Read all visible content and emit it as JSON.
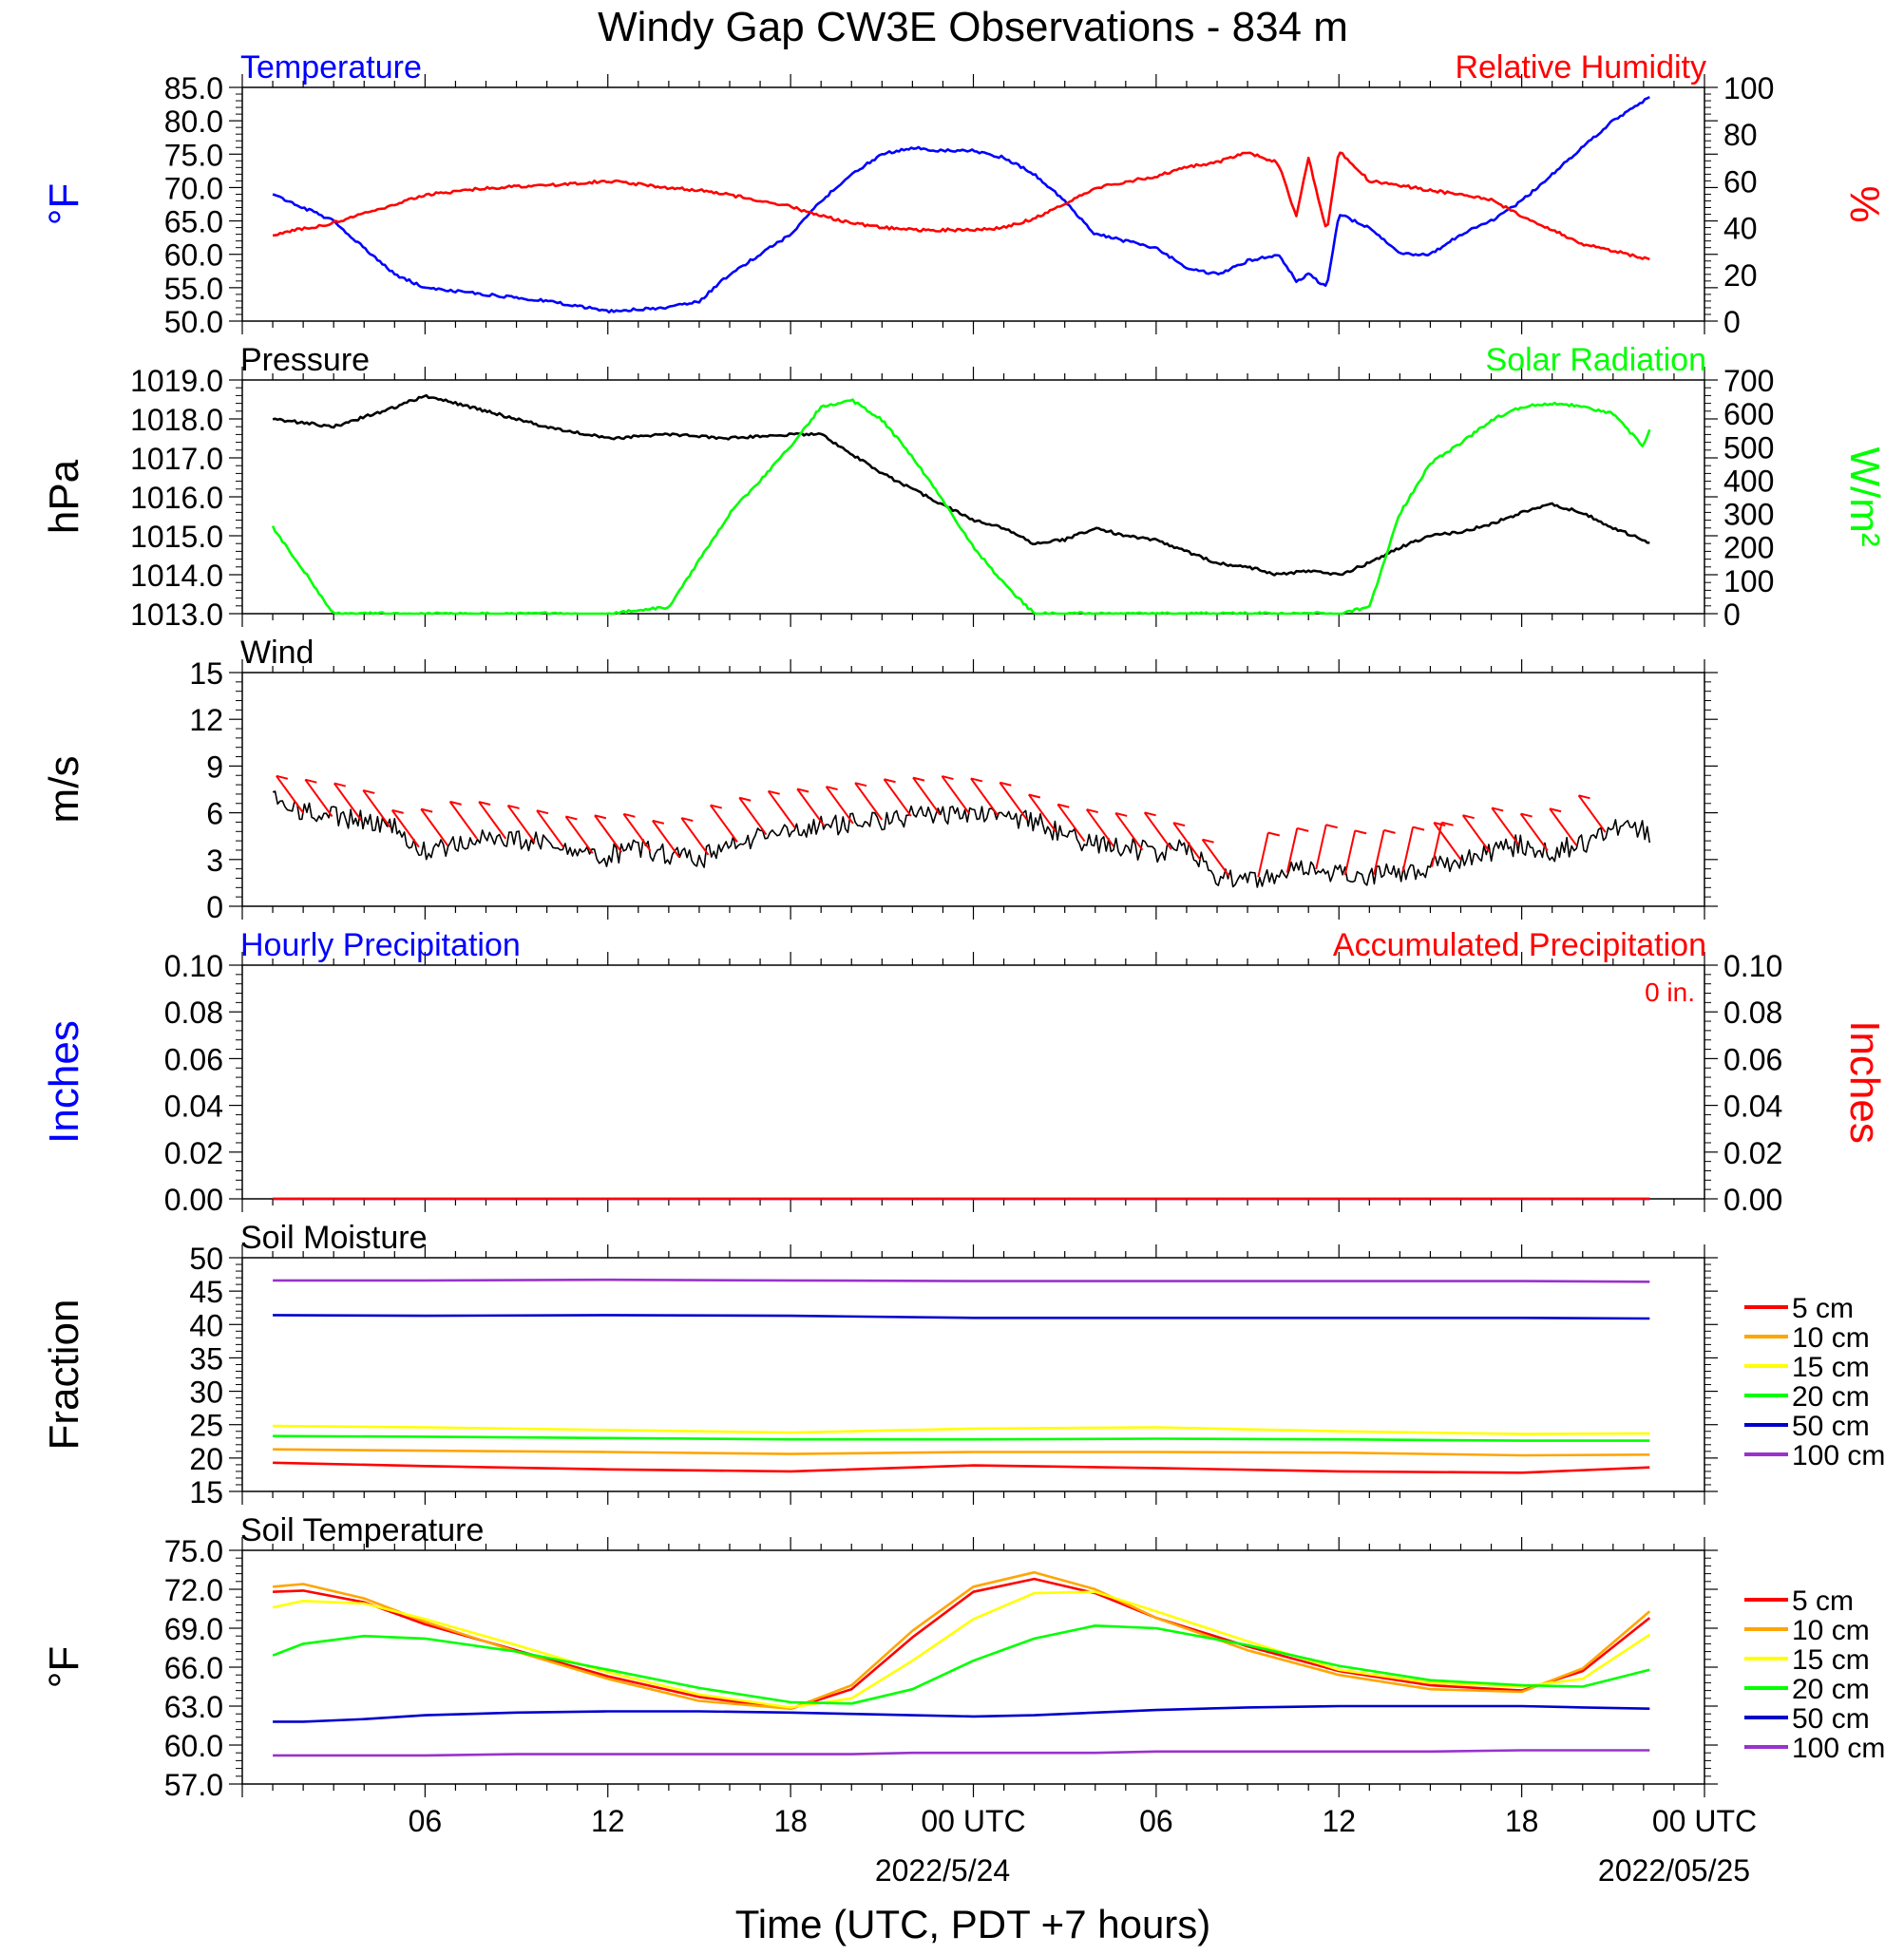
{
  "title": "Windy Gap CW3E Observations - 834 m",
  "x_axis": {
    "label": "Time (UTC, PDT +7 hours)",
    "ticks": [
      "06",
      "12",
      "18",
      "00 UTC",
      "06",
      "12",
      "18",
      "00 UTC"
    ],
    "dates": [
      "2022/5/24",
      "2022/05/25"
    ]
  },
  "colors": {
    "temperature": "#0000ff",
    "humidity": "#ff0000",
    "pressure": "#000000",
    "solar": "#00ff00",
    "wind": "#000000",
    "barbs": "#ff0000",
    "soil": [
      "#ff0000",
      "#ffa500",
      "#ffff00",
      "#00ff00",
      "#0000cc",
      "#9932cc"
    ]
  },
  "chart_data": [
    {
      "type": "line",
      "title": "",
      "left_label": "Temperature",
      "right_label": "Relative Humidity",
      "ylabel_left": "°F",
      "ylabel_right": "%",
      "ylim_left": [
        50,
        85
      ],
      "ylim_right": [
        0,
        100
      ],
      "yticks_left": [
        "50.0",
        "55.0",
        "60.0",
        "65.0",
        "70.0",
        "75.0",
        "80.0",
        "85.0"
      ],
      "yticks_right": [
        "0",
        "20",
        "40",
        "60",
        "80",
        "100"
      ],
      "x_hours": [
        1,
        3,
        5,
        6,
        8,
        10,
        12,
        14,
        15,
        16,
        18,
        19,
        20,
        21,
        22,
        23,
        24,
        25,
        26,
        27,
        28,
        30,
        31,
        32,
        33,
        34,
        34.6,
        35,
        35.6,
        36,
        37,
        38,
        39,
        40,
        41,
        42,
        43,
        44,
        45,
        46,
        46.2
      ],
      "series": [
        {
          "name": "Temperature",
          "axis": "left",
          "values": [
            69,
            65,
            57,
            55,
            54,
            53,
            51.5,
            52,
            53,
            57,
            63,
            68,
            72,
            75,
            76,
            75.5,
            75.5,
            74.5,
            72,
            68,
            63,
            61,
            58,
            57,
            59,
            60,
            56,
            57,
            55,
            66,
            64,
            60,
            60,
            63,
            65,
            68,
            72,
            76,
            80,
            83,
            83.5
          ]
        },
        {
          "name": "Relative Humidity",
          "axis": "right",
          "values": [
            37,
            42,
            50,
            54,
            57,
            58,
            60,
            57,
            56,
            54,
            49,
            45,
            42,
            40,
            39,
            39,
            39,
            40,
            44,
            50,
            57,
            62,
            66,
            68,
            72,
            68,
            45,
            70,
            38,
            73,
            60,
            58,
            56,
            54,
            52,
            45,
            39,
            33,
            30,
            27,
            27
          ]
        }
      ]
    },
    {
      "type": "line",
      "title": "",
      "left_label": "Pressure",
      "right_label": "Solar Radiation",
      "ylabel_left": "hPa",
      "ylabel_right": "W/m²",
      "ylim_left": [
        1013,
        1019
      ],
      "ylim_right": [
        0,
        700
      ],
      "yticks_left": [
        "1013.0",
        "1014.0",
        "1015.0",
        "1016.0",
        "1017.0",
        "1018.0",
        "1019.0"
      ],
      "yticks_right": [
        "0",
        "100",
        "200",
        "300",
        "400",
        "500",
        "600",
        "700"
      ],
      "x_hours": [
        1,
        3,
        5,
        6,
        8,
        10,
        12,
        14,
        16,
        18,
        19,
        20,
        21,
        22,
        23,
        24,
        25,
        26,
        27,
        28,
        29,
        30,
        31,
        32,
        33,
        34,
        35,
        36,
        37,
        38,
        39,
        40,
        41,
        42,
        43,
        44,
        45,
        46,
        46.2
      ],
      "series": [
        {
          "name": "Pressure",
          "axis": "left",
          "values": [
            1018,
            1017.8,
            1018.3,
            1018.6,
            1018.2,
            1017.8,
            1017.5,
            1017.6,
            1017.5,
            1017.6,
            1017.6,
            1017.1,
            1016.6,
            1016.2,
            1015.8,
            1015.4,
            1015.2,
            1014.8,
            1014.9,
            1015.2,
            1015.0,
            1014.9,
            1014.6,
            1014.3,
            1014.2,
            1014.0,
            1014.1,
            1014.0,
            1014.3,
            1014.7,
            1015.0,
            1015.1,
            1015.3,
            1015.6,
            1015.8,
            1015.6,
            1015.2,
            1014.9,
            1014.8
          ]
        },
        {
          "name": "Solar Radiation",
          "axis": "right",
          "values": [
            260,
            0,
            0,
            0,
            0,
            0,
            0,
            20,
            300,
            500,
            620,
            640,
            580,
            470,
            340,
            200,
            90,
            0,
            0,
            0,
            0,
            0,
            0,
            0,
            0,
            0,
            0,
            0,
            20,
            300,
            450,
            510,
            580,
            620,
            630,
            620,
            600,
            500,
            550
          ]
        }
      ]
    },
    {
      "type": "line",
      "title": "",
      "left_label": "Wind",
      "ylabel_left": "m/s",
      "ylim_left": [
        0,
        15
      ],
      "yticks_left": [
        "0",
        "3",
        "6",
        "9",
        "12",
        "15"
      ],
      "x_hours": [
        1,
        2,
        4,
        5,
        6,
        8,
        10,
        12,
        13,
        14,
        15,
        16,
        18,
        20,
        22,
        24,
        25,
        26,
        27,
        28,
        30,
        31,
        32,
        33,
        34,
        35,
        36,
        37,
        38,
        39,
        40,
        41,
        42,
        43,
        44,
        45,
        46,
        46.2
      ],
      "series": [
        {
          "name": "Wind speed",
          "axis": "left",
          "values": [
            7,
            6,
            5.5,
            5,
            3.5,
            4.5,
            4,
            3.2,
            3.8,
            3.2,
            3,
            4,
            5,
            5.3,
            5.8,
            6,
            5.8,
            5.5,
            4.5,
            4,
            3.5,
            3.8,
            2,
            1.8,
            2,
            2.5,
            2,
            2,
            2.2,
            2.5,
            3,
            3.5,
            4,
            3.5,
            4,
            5,
            5,
            4.5
          ]
        }
      ]
    },
    {
      "type": "line",
      "title": "",
      "left_label": "Hourly Precipitation",
      "right_label": "Accumulated Precipitation",
      "annotation": "0 in.",
      "ylabel_left": "Inches",
      "ylabel_right": "Inches",
      "ylim_left": [
        0,
        0.1
      ],
      "ylim_right": [
        0,
        0.1
      ],
      "yticks_left": [
        "0.00",
        "0.02",
        "0.04",
        "0.06",
        "0.08",
        "0.10"
      ],
      "yticks_right": [
        "0.00",
        "0.02",
        "0.04",
        "0.06",
        "0.08",
        "0.10"
      ],
      "x_hours": [
        1,
        46.2
      ],
      "series": [
        {
          "name": "Hourly Precipitation",
          "axis": "left",
          "values": [
            0,
            0
          ]
        },
        {
          "name": "Accumulated Precipitation",
          "axis": "right",
          "values": [
            0,
            0
          ]
        }
      ]
    },
    {
      "type": "line",
      "title": "",
      "left_label": "Soil Moisture",
      "ylabel_left": "Fraction",
      "ylim_left": [
        15,
        50
      ],
      "yticks_left": [
        "15",
        "20",
        "25",
        "30",
        "35",
        "40",
        "45",
        "50"
      ],
      "x_hours": [
        1,
        6,
        12,
        18,
        24,
        30,
        36,
        42,
        46.2
      ],
      "series": [
        {
          "name": "5 cm",
          "values": [
            19.3,
            18.8,
            18.3,
            18.0,
            18.9,
            18.5,
            18.0,
            17.8,
            18.6
          ]
        },
        {
          "name": "10 cm",
          "values": [
            21.3,
            21.1,
            20.9,
            20.6,
            20.9,
            20.9,
            20.8,
            20.4,
            20.5
          ]
        },
        {
          "name": "15 cm",
          "values": [
            24.8,
            24.6,
            24.2,
            23.8,
            24.4,
            24.6,
            24.0,
            23.6,
            23.7
          ]
        },
        {
          "name": "20 cm",
          "values": [
            23.3,
            23.2,
            23.0,
            22.8,
            22.8,
            22.9,
            22.8,
            22.6,
            22.6
          ]
        },
        {
          "name": "50 cm",
          "values": [
            41.4,
            41.3,
            41.4,
            41.3,
            41.0,
            41.0,
            41.0,
            41.0,
            40.9
          ]
        },
        {
          "name": "100 cm",
          "values": [
            46.6,
            46.6,
            46.7,
            46.6,
            46.5,
            46.5,
            46.5,
            46.5,
            46.4
          ]
        }
      ]
    },
    {
      "type": "line",
      "title": "",
      "left_label": "Soil Temperature",
      "ylabel_left": "°F",
      "ylim_left": [
        57,
        75
      ],
      "yticks_left": [
        "57.0",
        "60.0",
        "63.0",
        "66.0",
        "69.0",
        "72.0",
        "75.0"
      ],
      "x_hours": [
        1,
        2,
        4,
        6,
        9,
        12,
        15,
        18,
        20,
        22,
        24,
        26,
        28,
        30,
        33,
        36,
        39,
        42,
        44,
        46.2
      ],
      "series": [
        {
          "name": "5 cm",
          "values": [
            71.8,
            71.9,
            71.0,
            69.3,
            67.3,
            65.3,
            63.7,
            62.8,
            64.3,
            68.3,
            71.8,
            72.8,
            71.7,
            69.8,
            67.6,
            65.7,
            64.6,
            64.2,
            65.7,
            69.8
          ]
        },
        {
          "name": "10 cm",
          "values": [
            72.2,
            72.4,
            71.3,
            69.5,
            67.2,
            65.1,
            63.4,
            62.8,
            64.6,
            68.8,
            72.2,
            73.3,
            72.0,
            69.8,
            67.3,
            65.4,
            64.3,
            64.1,
            65.9,
            70.3
          ]
        },
        {
          "name": "15 cm",
          "values": [
            70.6,
            71.1,
            70.9,
            69.7,
            67.7,
            65.6,
            63.9,
            62.9,
            63.6,
            66.5,
            69.7,
            71.7,
            71.8,
            70.3,
            68.0,
            65.8,
            64.8,
            64.5,
            65.1,
            68.5
          ]
        },
        {
          "name": "20 cm",
          "values": [
            66.9,
            67.8,
            68.4,
            68.2,
            67.2,
            65.8,
            64.4,
            63.3,
            63.2,
            64.3,
            66.5,
            68.2,
            69.2,
            69.0,
            67.7,
            66.1,
            65.0,
            64.6,
            64.5,
            65.8
          ]
        },
        {
          "name": "50 cm",
          "values": [
            61.8,
            61.8,
            62.0,
            62.3,
            62.5,
            62.6,
            62.6,
            62.5,
            62.4,
            62.3,
            62.2,
            62.3,
            62.5,
            62.7,
            62.9,
            63.0,
            63.0,
            63.0,
            62.9,
            62.8
          ]
        },
        {
          "name": "100 cm",
          "values": [
            59.2,
            59.2,
            59.2,
            59.2,
            59.3,
            59.3,
            59.3,
            59.3,
            59.3,
            59.4,
            59.4,
            59.4,
            59.4,
            59.5,
            59.5,
            59.5,
            59.5,
            59.6,
            59.6,
            59.6
          ]
        }
      ]
    }
  ]
}
